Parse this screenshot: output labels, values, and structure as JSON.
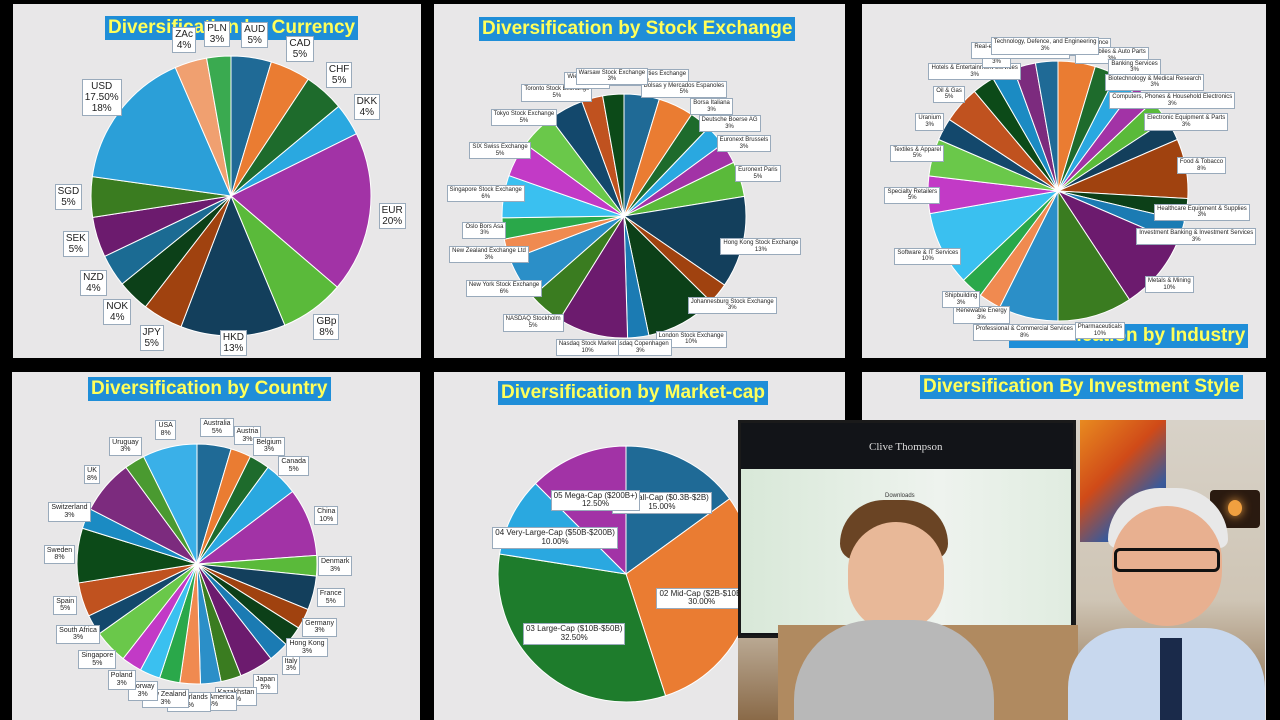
{
  "chart_data": [
    {
      "type": "pie",
      "title": "Diversification by Currency",
      "slices": [
        {
          "label": "AUD",
          "value": 5,
          "value_text": "5%",
          "color": "#1f6a96"
        },
        {
          "label": "CAD",
          "value": 5,
          "value_text": "5%",
          "color": "#ea7c32"
        },
        {
          "label": "CHF",
          "value": 5,
          "value_text": "5%",
          "color": "#1e6b2c"
        },
        {
          "label": "DKK",
          "value": 4,
          "value_text": "4%",
          "color": "#2aa8e0"
        },
        {
          "label": "EUR",
          "value": 20,
          "value_text": "20%",
          "color": "#a233a6"
        },
        {
          "label": "GBp",
          "value": 8,
          "value_text": "8%",
          "color": "#5aba3a"
        },
        {
          "label": "HKD",
          "value": 13,
          "value_text": "13%",
          "color": "#133f5c"
        },
        {
          "label": "JPY",
          "value": 5,
          "value_text": "5%",
          "color": "#a0420f"
        },
        {
          "label": "NOK",
          "value": 4,
          "value_text": "4%",
          "color": "#0c4018"
        },
        {
          "label": "NZD",
          "value": 4,
          "value_text": "4%",
          "color": "#1b6b93"
        },
        {
          "label": "SEK",
          "value": 5,
          "value_text": "5%",
          "color": "#6c1b6e"
        },
        {
          "label": "SGD",
          "value": 5,
          "value_text": "5%",
          "color": "#3a7c20"
        },
        {
          "label": "USD",
          "value": 17.5,
          "value_text": "17.50%\n18%",
          "color": "#2b9fd8"
        },
        {
          "label": "ZAc",
          "value": 4,
          "value_text": "4%",
          "color": "#f0a070"
        },
        {
          "label": "PLN",
          "value": 3,
          "value_text": "3%",
          "color": "#3aaa50"
        }
      ]
    },
    {
      "type": "pie",
      "title": "Diversification by Stock Exchange",
      "slices": [
        {
          "label": "Australian Securities Exchange",
          "value_text": "5%",
          "value": 5,
          "color": "#1f6a96"
        },
        {
          "label": "Bolsas y Mercados Espanoles",
          "value_text": "5%",
          "value": 5,
          "color": "#ea7c32"
        },
        {
          "label": "Borsa Italiana",
          "value_text": "3%",
          "value": 3,
          "color": "#1e6b2c"
        },
        {
          "label": "Deutsche Boerse AG",
          "value_text": "3%",
          "value": 3,
          "color": "#2aa8e0"
        },
        {
          "label": "Euronext Brussels",
          "value_text": "3%",
          "value": 3,
          "color": "#a233a6"
        },
        {
          "label": "Euronext Paris",
          "value_text": "5%",
          "value": 5,
          "color": "#5aba3a"
        },
        {
          "label": "Hong Kong Stock Exchange",
          "value_text": "13%",
          "value": 13,
          "color": "#133f5c"
        },
        {
          "label": "Johannesburg Stock Exchange",
          "value_text": "3%",
          "value": 3,
          "color": "#a0420f"
        },
        {
          "label": "London Stock Exchange",
          "value_text": "10%",
          "value": 10,
          "color": "#0c4018"
        },
        {
          "label": "Nasdaq Copenhagen",
          "value_text": "3%",
          "value": 3,
          "color": "#1b7bb3"
        },
        {
          "label": "Nasdaq Stock Market",
          "value_text": "10%",
          "value": 10,
          "color": "#6c1b6e"
        },
        {
          "label": "NASDAQ Stockholm",
          "value_text": "5%",
          "value": 5,
          "color": "#3a7c20"
        },
        {
          "label": "New York Stock Exchange",
          "value_text": "6%",
          "value": 6,
          "color": "#2b8fc8"
        },
        {
          "label": "New Zealand Exchange Ltd",
          "value_text": "3%",
          "value": 3,
          "color": "#f08a50"
        },
        {
          "label": "Oslo Bors Asa",
          "value_text": "3%",
          "value": 3,
          "color": "#2aa84a"
        },
        {
          "label": "Singapore Stock Exchange",
          "value_text": "6%",
          "value": 6,
          "color": "#3ac0f0"
        },
        {
          "label": "SIX Swiss Exchange",
          "value_text": "5%",
          "value": 5,
          "color": "#c23ac6"
        },
        {
          "label": "Tokyo Stock Exchange",
          "value_text": "5%",
          "value": 5,
          "color": "#6ac84a"
        },
        {
          "label": "Toronto Stock Exchange",
          "value_text": "5%",
          "value": 5,
          "color": "#13486c"
        },
        {
          "label": "Wiener Boerse",
          "value_text": "3%",
          "value": 3,
          "color": "#c0521f"
        },
        {
          "label": "Warsaw Stock Exchange",
          "value_text": "3%",
          "value": 3,
          "color": "#0c4a18"
        }
      ]
    },
    {
      "type": "pie",
      "title": "Diversfication by Industry",
      "slices": [
        {
          "label": "Aerospace & Defence",
          "value_text": "5%",
          "value": 5,
          "color": "#ea7c32"
        },
        {
          "label": "Automobiles & Auto Parts",
          "value_text": "3%",
          "value": 3,
          "color": "#1e6b2c"
        },
        {
          "label": "Banking Services",
          "value_text": "3%",
          "value": 3,
          "color": "#2aa8e0"
        },
        {
          "label": "Biotechnology & Medical Research",
          "value_text": "3%",
          "value": 3,
          "color": "#a233a6"
        },
        {
          "label": "Computers, Phones & Household Electronics",
          "value_text": "3%",
          "value": 3,
          "color": "#5aba3a"
        },
        {
          "label": "Electronic Equipment & Parts",
          "value_text": "3%",
          "value": 3,
          "color": "#133f5c"
        },
        {
          "label": "Food & Tobacco",
          "value_text": "8%",
          "value": 8,
          "color": "#a0420f"
        },
        {
          "label": "Healthcare Equipment & Supplies",
          "value_text": "3%",
          "value": 3,
          "color": "#0c4018"
        },
        {
          "label": "Investment Banking & Investment Services",
          "value_text": "3%",
          "value": 3,
          "color": "#1b7bb3"
        },
        {
          "label": "Metals & Mining",
          "value_text": "10%",
          "value": 10,
          "color": "#6c1b6e"
        },
        {
          "label": "Pharmaceuticals",
          "value_text": "10%",
          "value": 10,
          "color": "#3a7c20"
        },
        {
          "label": "Professional & Commercial Services",
          "value_text": "8%",
          "value": 8,
          "color": "#2b8fc8"
        },
        {
          "label": "Renewable Energy",
          "value_text": "3%",
          "value": 3,
          "color": "#f08a50"
        },
        {
          "label": "Shipbuilding",
          "value_text": "3%",
          "value": 3,
          "color": "#2aa84a"
        },
        {
          "label": "Software & IT Services",
          "value_text": "10%",
          "value": 10,
          "color": "#3ac0f0"
        },
        {
          "label": "Specialty Retailers",
          "value_text": "5%",
          "value": 5,
          "color": "#c23ac6"
        },
        {
          "label": "Textiles & Apparel",
          "value_text": "5%",
          "value": 5,
          "color": "#6ac84a"
        },
        {
          "label": "Uranium",
          "value_text": "3%",
          "value": 3,
          "color": "#13486c"
        },
        {
          "label": "Oil & Gas",
          "value_text": "5%",
          "value": 5,
          "color": "#c0521f"
        },
        {
          "label": "Hotels & Entertainment Services",
          "value_text": "3%",
          "value": 3,
          "color": "#0c4a18"
        },
        {
          "label": "Vehicles",
          "value_text": "3%",
          "value": 3,
          "color": "#1b8bc3"
        },
        {
          "label": "Real-estate Consulting businesses",
          "value_text": "3%",
          "value": 3,
          "color": "#7c2b7e"
        },
        {
          "label": "Technology, Defence, and Engineering",
          "value_text": "3%",
          "value": 3,
          "color": "#1f6a96"
        }
      ]
    },
    {
      "type": "pie",
      "title": "Diversification by Country",
      "slices": [
        {
          "label": "Australia",
          "value_text": "5%",
          "value": 5,
          "color": "#1f6a96"
        },
        {
          "label": "Austria",
          "value_text": "3%",
          "value": 3,
          "color": "#ea7c32"
        },
        {
          "label": "Belgium",
          "value_text": "3%",
          "value": 3,
          "color": "#1e6b2c"
        },
        {
          "label": "Canada",
          "value_text": "5%",
          "value": 5,
          "color": "#2aa8e0"
        },
        {
          "label": "China",
          "value_text": "10%",
          "value": 10,
          "color": "#a233a6"
        },
        {
          "label": "Denmark",
          "value_text": "3%",
          "value": 3,
          "color": "#5aba3a"
        },
        {
          "label": "France",
          "value_text": "5%",
          "value": 5,
          "color": "#133f5c"
        },
        {
          "label": "Germany",
          "value_text": "3%",
          "value": 3,
          "color": "#a0420f"
        },
        {
          "label": "Hong Kong",
          "value_text": "3%",
          "value": 3,
          "color": "#0c4018"
        },
        {
          "label": "Italy",
          "value_text": "3%",
          "value": 3,
          "color": "#1b7bb3"
        },
        {
          "label": "Japan",
          "value_text": "5%",
          "value": 5,
          "color": "#6c1b6e"
        },
        {
          "label": "Kazakhstan",
          "value_text": "3%",
          "value": 3,
          "color": "#3a7c20"
        },
        {
          "label": "Latin America",
          "value_text": "3%",
          "value": 3,
          "color": "#2b8fc8"
        },
        {
          "label": "Netherlands",
          "value_text": "3%",
          "value": 3,
          "color": "#f08a50"
        },
        {
          "label": "New Zealand",
          "value_text": "3%",
          "value": 3,
          "color": "#2aa84a"
        },
        {
          "label": "Norway",
          "value_text": "3%",
          "value": 3,
          "color": "#3ac0f0"
        },
        {
          "label": "Poland",
          "value_text": "3%",
          "value": 3,
          "color": "#c23ac6"
        },
        {
          "label": "Singapore",
          "value_text": "5%",
          "value": 5,
          "color": "#6ac84a"
        },
        {
          "label": "South Africa",
          "value_text": "3%",
          "value": 3,
          "color": "#13486c"
        },
        {
          "label": "Spain",
          "value_text": "5%",
          "value": 5,
          "color": "#c0521f"
        },
        {
          "label": "Sweden",
          "value_text": "8%",
          "value": 8,
          "color": "#0c4a18"
        },
        {
          "label": "Switzerland",
          "value_text": "3%",
          "value": 3,
          "color": "#1b8bc3"
        },
        {
          "label": "UK",
          "value_text": "8%",
          "value": 8,
          "color": "#7c2b7e"
        },
        {
          "label": "Uruguay",
          "value_text": "3%",
          "value": 3,
          "color": "#4a9a30"
        },
        {
          "label": "USA",
          "value_text": "8%",
          "value": 8,
          "color": "#3ab0e8"
        }
      ]
    },
    {
      "type": "pie",
      "title": "Diversification by Market-cap",
      "slices": [
        {
          "label": "01 Small-Cap ($0.3B-$2B)",
          "value_text": "15.00%",
          "value": 15,
          "color": "#1f6a96"
        },
        {
          "label": "02 Mid-Cap ($2B-$10B)",
          "value_text": "30.00%",
          "value": 30,
          "color": "#ea7c32"
        },
        {
          "label": "03 Large-Cap ($10B-$50B)",
          "value_text": "32.50%",
          "value": 32.5,
          "color": "#1e7c2c"
        },
        {
          "label": "04 Very-Large-Cap ($50B-$200B)",
          "value_text": "10.00%",
          "value": 10,
          "color": "#2aa8e0"
        },
        {
          "label": "05 Mega-Cap ($200B+)",
          "value_text": "12.50%",
          "value": 12.5,
          "color": "#a233a6"
        }
      ]
    },
    {
      "type": "pie",
      "title": "Diversification By Investment Style",
      "slices": []
    }
  ],
  "webcam": {
    "site_title": "Clive Thompson",
    "section": "Downloads"
  }
}
